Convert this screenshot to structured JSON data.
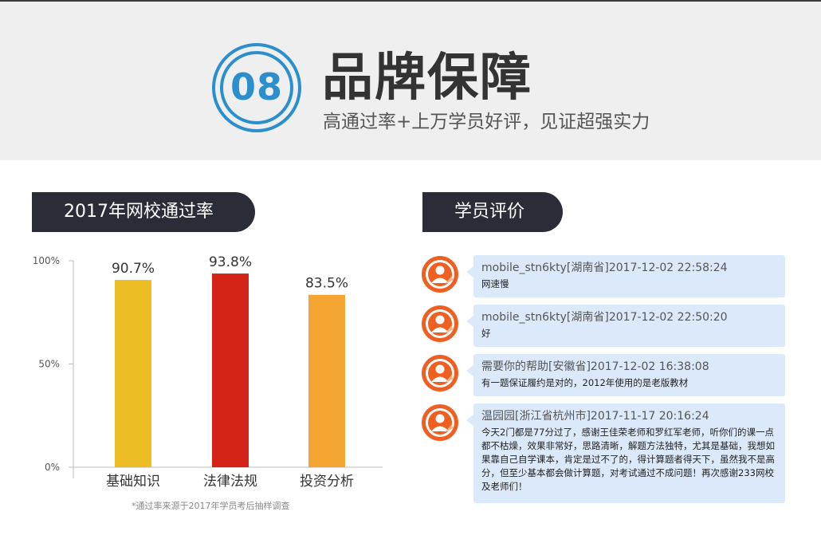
{
  "header": {
    "number": "08",
    "title": "品牌保障",
    "subtitle": "高通过率+上万学员好评，见证超强实力"
  },
  "tabs": {
    "left": "2017年网校通过率",
    "right": "学员评价"
  },
  "chart_data": {
    "type": "bar",
    "categories": [
      "基础知识",
      "法律法规",
      "投资分析"
    ],
    "values": [
      90.7,
      93.8,
      83.5
    ],
    "value_labels": [
      "90.7%",
      "93.8%",
      "83.5%"
    ],
    "colors": [
      "#ecbc25",
      "#d42418",
      "#f5a532"
    ],
    "yticks": [
      "100%",
      "50%",
      "0%"
    ],
    "ylim": [
      0,
      100
    ],
    "title": "",
    "xlabel": "",
    "ylabel": ""
  },
  "chart_note": "*通过率来源于2017年学员考后抽样调查",
  "reviews": [
    {
      "header": "mobile_stn6kty[湖南省]2017-12-02 22:58:24",
      "body": "网速慢"
    },
    {
      "header": "mobile_stn6kty[湖南省]2017-12-02 22:50:20",
      "body": "好"
    },
    {
      "header": "需要你的帮助[安徽省]2017-12-02 16:38:08",
      "body": "有一题保证履约是对的，2012年使用的是老版教材"
    },
    {
      "header": "温园园[浙江省杭州市]2017-11-17 20:16:24",
      "body": "今天2门都是77分过了，感谢王佳荣老师和罗红军老师，听你们的课一点都不枯燥，效果非常好，思路清晰，解题方法独特，尤其是基础，我想如果靠自己自学课本，肯定是过不了的，得计算题者得天下，虽然我不是高分，但至少基本都会做计算题，对考试通过不成问题！再次感谢233网校及老师们！"
    }
  ]
}
